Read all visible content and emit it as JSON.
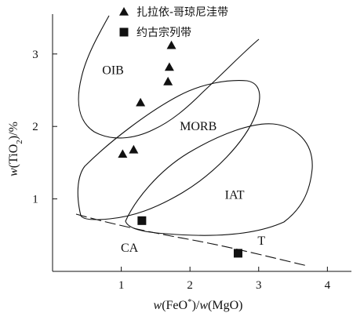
{
  "chart_data": {
    "type": "scatter",
    "xlabel": "w(FeO*)/w(MgO)",
    "ylabel": "w(TiO2)/%",
    "xlim": [
      0,
      4.35
    ],
    "ylim": [
      0,
      3.55
    ],
    "x_ticks": [
      "1",
      "2",
      "3",
      "4"
    ],
    "y_ticks": [
      "1",
      "2",
      "3"
    ],
    "grid": false,
    "legend_position": "top-center",
    "series": [
      {
        "name": "扎拉依-哥琼尼洼带",
        "marker": "triangle",
        "color": "#111111",
        "points": [
          {
            "x": 1.02,
            "y": 1.62
          },
          {
            "x": 1.18,
            "y": 1.68
          },
          {
            "x": 1.28,
            "y": 2.33
          },
          {
            "x": 1.68,
            "y": 2.62
          },
          {
            "x": 1.7,
            "y": 2.82
          },
          {
            "x": 1.73,
            "y": 3.12
          }
        ]
      },
      {
        "name": "约古宗列带",
        "marker": "square",
        "color": "#111111",
        "points": [
          {
            "x": 1.3,
            "y": 0.7
          },
          {
            "x": 2.7,
            "y": 0.25
          }
        ]
      }
    ],
    "field_labels": [
      {
        "text": "OIB",
        "x": 0.88,
        "y": 2.72
      },
      {
        "text": "MORB",
        "x": 2.12,
        "y": 1.95
      },
      {
        "text": "IAT",
        "x": 2.65,
        "y": 1.0
      },
      {
        "text": "CA",
        "x": 1.12,
        "y": 0.27
      },
      {
        "text": "T",
        "x": 3.04,
        "y": 0.37
      }
    ]
  }
}
